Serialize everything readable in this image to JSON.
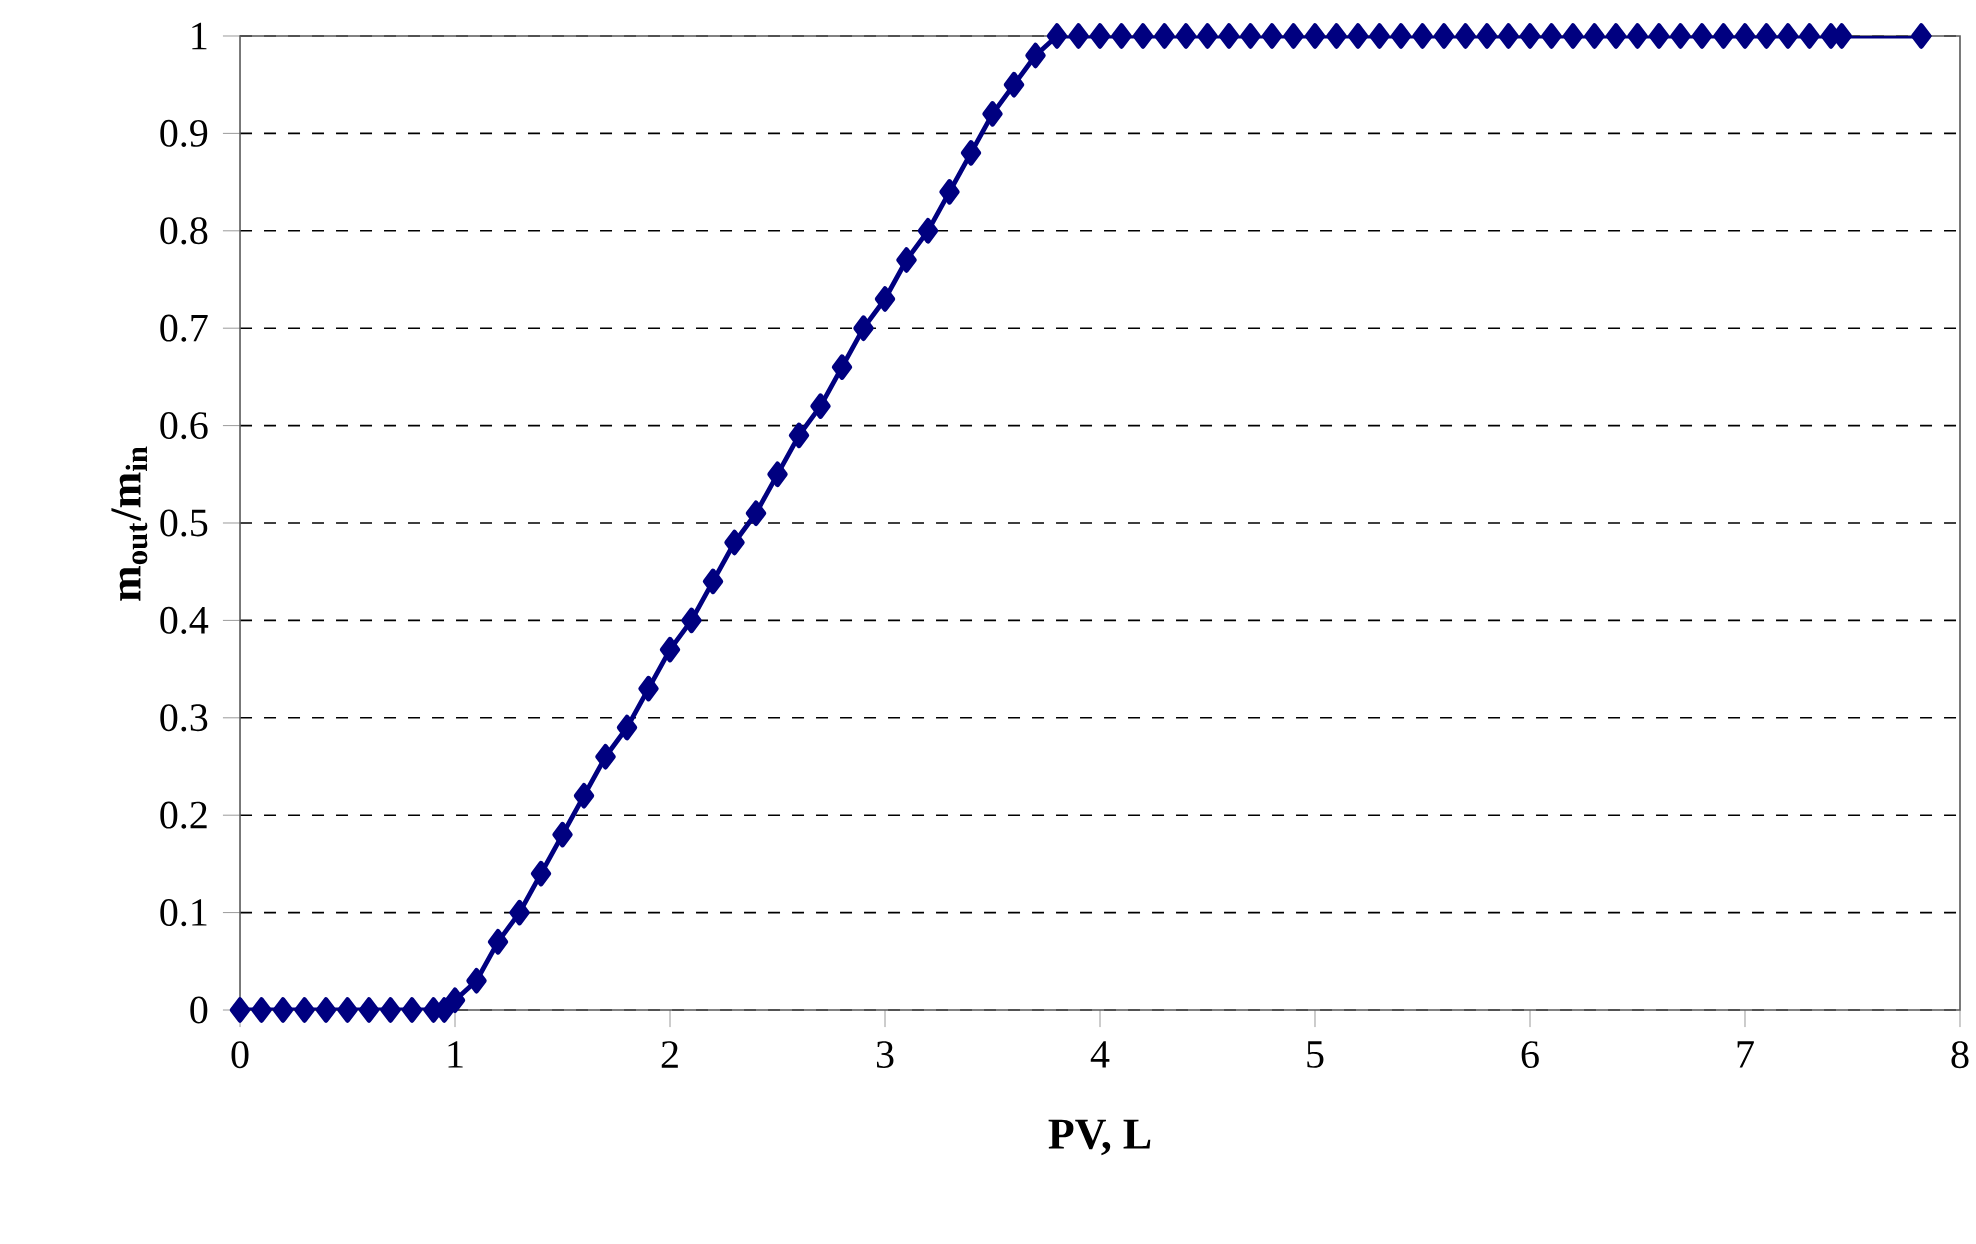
{
  "chart_data": {
    "type": "line",
    "xlabel": "PV, L",
    "ylabel": "m$_{out}$/m$_{in}$",
    "x": [
      0,
      0.1,
      0.2,
      0.3,
      0.4,
      0.5,
      0.6,
      0.7,
      0.8,
      0.9,
      0.95,
      1.0,
      1.1,
      1.2,
      1.3,
      1.4,
      1.5,
      1.6,
      1.7,
      1.8,
      1.9,
      2.0,
      2.1,
      2.2,
      2.3,
      2.4,
      2.5,
      2.6,
      2.7,
      2.8,
      2.9,
      3.0,
      3.1,
      3.2,
      3.3,
      3.4,
      3.5,
      3.6,
      3.7,
      3.8,
      3.9,
      4.0,
      4.1,
      4.2,
      4.3,
      4.4,
      4.5,
      4.6,
      4.7,
      4.8,
      4.9,
      5.0,
      5.1,
      5.2,
      5.3,
      5.4,
      5.5,
      5.6,
      5.7,
      5.8,
      5.9,
      6.0,
      6.1,
      6.2,
      6.3,
      6.4,
      6.5,
      6.6,
      6.7,
      6.8,
      6.9,
      7.0,
      7.1,
      7.2,
      7.3,
      7.4,
      7.45,
      7.82
    ],
    "series": [
      {
        "color": "#000080",
        "values": [
          0,
          0,
          0,
          0,
          0,
          0,
          0,
          0,
          0,
          0,
          0,
          0.01,
          0.03,
          0.07,
          0.1,
          0.14,
          0.18,
          0.22,
          0.26,
          0.29,
          0.33,
          0.37,
          0.4,
          0.44,
          0.48,
          0.51,
          0.55,
          0.59,
          0.62,
          0.66,
          0.7,
          0.73,
          0.77,
          0.8,
          0.84,
          0.88,
          0.92,
          0.95,
          0.98,
          1,
          1,
          1,
          1,
          1,
          1,
          1,
          1,
          1,
          1,
          1,
          1,
          1,
          1,
          1,
          1,
          1,
          1,
          1,
          1,
          1,
          1,
          1,
          1,
          1,
          1,
          1,
          1,
          1,
          1,
          1,
          1,
          1,
          1,
          1,
          1,
          1,
          1,
          1
        ]
      }
    ],
    "xlim": [
      0,
      8
    ],
    "ylim": [
      0,
      1
    ],
    "xticks": [
      0,
      1,
      2,
      3,
      4,
      5,
      6,
      7,
      8
    ],
    "yticks": [
      0,
      0.1,
      0.2,
      0.3,
      0.4,
      0.5,
      0.6,
      0.7,
      0.8,
      0.9,
      1
    ],
    "grid": "y",
    "marker": "diamond",
    "line_style": "solid"
  }
}
